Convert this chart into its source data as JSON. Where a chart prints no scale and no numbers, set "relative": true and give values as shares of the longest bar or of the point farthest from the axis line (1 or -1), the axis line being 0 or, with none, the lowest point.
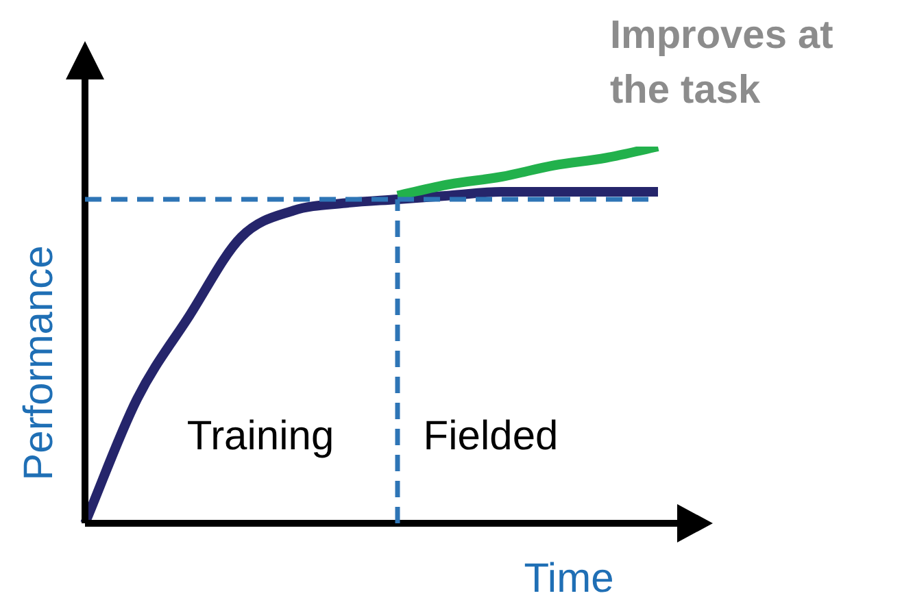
{
  "chart_data": {
    "type": "line",
    "relative": true,
    "xlabel": "Time",
    "ylabel": "Performance",
    "categories": [
      null,
      null,
      null,
      null,
      null,
      null,
      null,
      null,
      null,
      null,
      null,
      null
    ],
    "series": [
      {
        "color": "#22b14c",
        "values": [
          null,
          null,
          null,
          null,
          null,
          null,
          0.87,
          0.9,
          0.92,
          0.95,
          0.97,
          1.0
        ],
        "name": "Improves at the task"
      },
      {
        "color": "#25256b",
        "values": [
          0,
          0.33,
          0.55,
          0.76,
          0.83,
          0.85,
          0.86,
          0.87,
          0.88,
          0.88,
          0.88,
          0.88
        ]
      }
    ],
    "ref_lines": [
      {
        "axis": "y",
        "value": 0.86,
        "color": "#2e75b6",
        "line_style": "dashed"
      }
    ],
    "annotations": [
      "Training",
      "Fielded"
    ],
    "legend": false,
    "marker": "none",
    "line_style": "solid"
  }
}
